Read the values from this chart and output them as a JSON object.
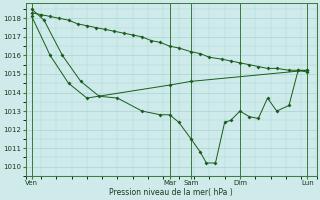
{
  "xlabel": "Pression niveau de la mer( hPa )",
  "ylim": [
    1009.5,
    1018.8
  ],
  "yticks": [
    1010,
    1011,
    1012,
    1013,
    1014,
    1015,
    1016,
    1017,
    1018
  ],
  "bg_color": "#ceeaea",
  "grid_color": "#a8d4d4",
  "line_color": "#1a5c1a",
  "vline_color": "#3a7a3a",
  "xtick_labels": [
    "Ven",
    "Mar",
    "Sam",
    "Dim",
    "Lun"
  ],
  "xtick_positions": [
    0.0,
    0.45,
    0.52,
    0.68,
    0.9
  ],
  "line1": {
    "x": [
      0.0,
      0.03,
      0.06,
      0.09,
      0.12,
      0.15,
      0.18,
      0.21,
      0.24,
      0.27,
      0.3,
      0.33,
      0.36,
      0.39,
      0.42,
      0.45,
      0.48,
      0.52,
      0.55,
      0.58,
      0.62,
      0.65,
      0.68,
      0.71,
      0.74,
      0.77,
      0.8,
      0.84,
      0.87,
      0.9
    ],
    "y": [
      1018.3,
      1018.2,
      1018.1,
      1018.0,
      1017.9,
      1017.7,
      1017.6,
      1017.5,
      1017.4,
      1017.3,
      1017.2,
      1017.1,
      1017.0,
      1016.8,
      1016.7,
      1016.5,
      1016.4,
      1016.2,
      1016.1,
      1015.9,
      1015.8,
      1015.7,
      1015.6,
      1015.5,
      1015.4,
      1015.3,
      1015.3,
      1015.2,
      1015.2,
      1015.2
    ]
  },
  "line2": {
    "x": [
      0.0,
      0.06,
      0.12,
      0.18,
      0.45,
      0.52,
      0.9
    ],
    "y": [
      1018.1,
      1016.0,
      1014.5,
      1013.7,
      1014.4,
      1014.6,
      1015.2
    ]
  },
  "line3": {
    "x": [
      0.0,
      0.04,
      0.1,
      0.16,
      0.22,
      0.28,
      0.36,
      0.42,
      0.45,
      0.48,
      0.52,
      0.55,
      0.57,
      0.6,
      0.63,
      0.65,
      0.68,
      0.71,
      0.74,
      0.77,
      0.8,
      0.84,
      0.87,
      0.9
    ],
    "y": [
      1018.5,
      1017.9,
      1016.0,
      1014.6,
      1013.8,
      1013.7,
      1013.0,
      1012.8,
      1012.8,
      1012.4,
      1011.5,
      1010.8,
      1010.2,
      1010.2,
      1012.4,
      1012.5,
      1013.0,
      1012.7,
      1012.6,
      1013.7,
      1013.0,
      1013.3,
      1015.2,
      1015.1
    ]
  }
}
